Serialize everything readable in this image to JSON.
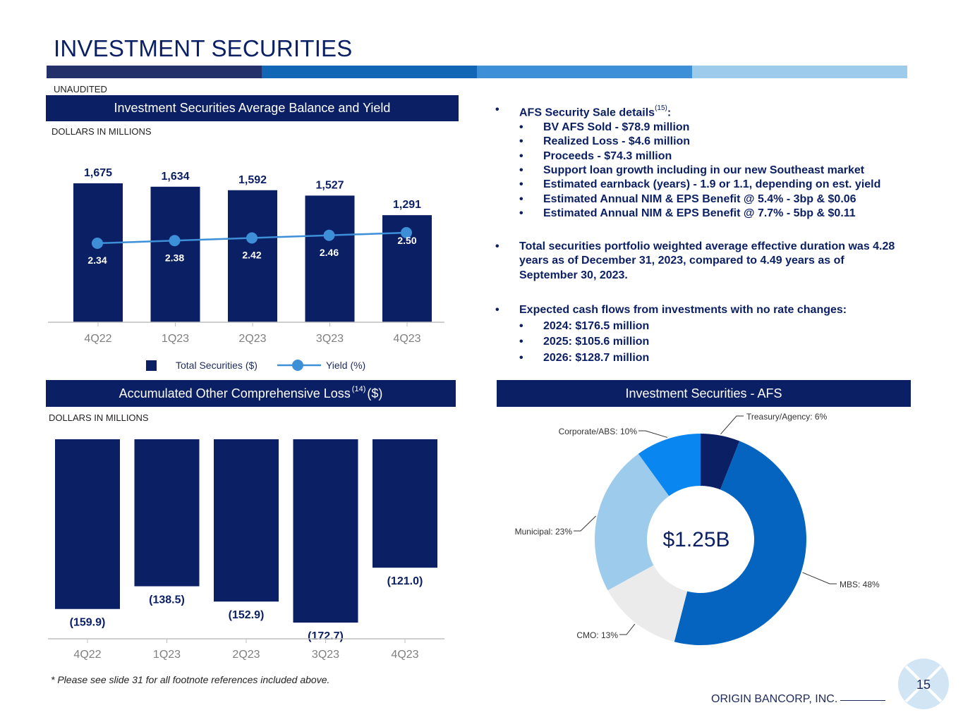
{
  "title": "INVESTMENT SECURITIES",
  "unaudited": "UNAUDITED",
  "brand_colors": [
    "#24306a",
    "#1166b5",
    "#3d8fd8",
    "#9dcbeb"
  ],
  "chart_top_header": "Investment Securities Average Balance and Yield",
  "units_top": "DOLLARS IN MILLIONS",
  "chart_bottom_header_pre": "Accumulated Other Comprehensive Loss",
  "chart_bottom_header_sup": "(14)",
  "chart_bottom_header_post": "($)",
  "units_bottom": "DOLLARS IN MILLIONS",
  "pie_header": "Investment Securities - AFS",
  "pie_center": "$1.25B",
  "bullets": {
    "afs_title": "AFS Security Sale details",
    "afs_sup": "(15)",
    "afs_colon": ":",
    "afs_items": [
      "BV AFS Sold -  $78.9 million",
      "Realized Loss - $4.6 million",
      "Proceeds - $74.3 million",
      "Support loan growth including in our new Southeast market",
      "Estimated earnback (years) - 1.9 or 1.1, depending on est. yield",
      "Estimated Annual NIM & EPS Benefit @ 5.4% - 3bp & $0.06",
      "Estimated Annual NIM & EPS Benefit @ 7.7% - 5bp & $0.11"
    ],
    "duration": "Total securities portfolio weighted average effective duration was 4.28 years as of December 31, 2023, compared to 4.49 years as of September 30, 2023.",
    "cash_title": "Expected cash flows from investments with no rate changes:",
    "cash_items": [
      "2024: $176.5 million",
      "2025: $105.6 million",
      "2026: $128.7 million"
    ]
  },
  "footnote": "* Please see slide 31 for all footnote references included above.",
  "company": "ORIGIN BANCORP, INC.",
  "page_number": "15",
  "chart_data": [
    {
      "type": "bar",
      "title": "Investment Securities Average Balance and Yield",
      "categories": [
        "4Q22",
        "1Q23",
        "2Q23",
        "3Q23",
        "4Q23"
      ],
      "series": [
        {
          "name": "Total Securities ($)",
          "type": "bar",
          "values": [
            1675,
            1634,
            1592,
            1527,
            1291
          ],
          "labels": [
            "1,675",
            "1,634",
            "1,592",
            "1,527",
            "1,291"
          ],
          "color": "#0b1f64"
        },
        {
          "name": "Yield (%)",
          "type": "line",
          "values": [
            2.34,
            2.38,
            2.42,
            2.46,
            2.5
          ],
          "labels": [
            "2.34",
            "2.38",
            "2.42",
            "2.46",
            "2.50"
          ],
          "color": "#3d8fd8"
        }
      ],
      "ylim": [
        0,
        1900
      ],
      "y2lim": [
        0,
        3.3
      ]
    },
    {
      "type": "bar",
      "title": "Accumulated Other Comprehensive Loss (14) ($)",
      "categories": [
        "4Q22",
        "1Q23",
        "2Q23",
        "3Q23",
        "4Q23"
      ],
      "values": [
        -159.9,
        -138.5,
        -152.9,
        -172.7,
        -121.0
      ],
      "labels": [
        "(159.9)",
        "(138.5)",
        "(152.9)",
        "(172.7)",
        "(121.0)"
      ],
      "ylim": [
        -200,
        0
      ],
      "color": "#0b1f64"
    },
    {
      "type": "pie",
      "title": "Investment Securities - AFS",
      "categories": [
        "Treasury/Agency",
        "MBS",
        "CMO",
        "Municipal",
        "Corporate/ABS"
      ],
      "values": [
        6,
        48,
        13,
        23,
        10
      ],
      "labels": [
        "Treasury/Agency: 6%",
        "MBS: 48%",
        "CMO: 13%",
        "Municipal: 23%",
        "Corporate/ABS: 10%"
      ],
      "colors": [
        "#0b1f64",
        "#0564bf",
        "#ebebeb",
        "#9dcbeb",
        "#0a86f0"
      ]
    }
  ]
}
